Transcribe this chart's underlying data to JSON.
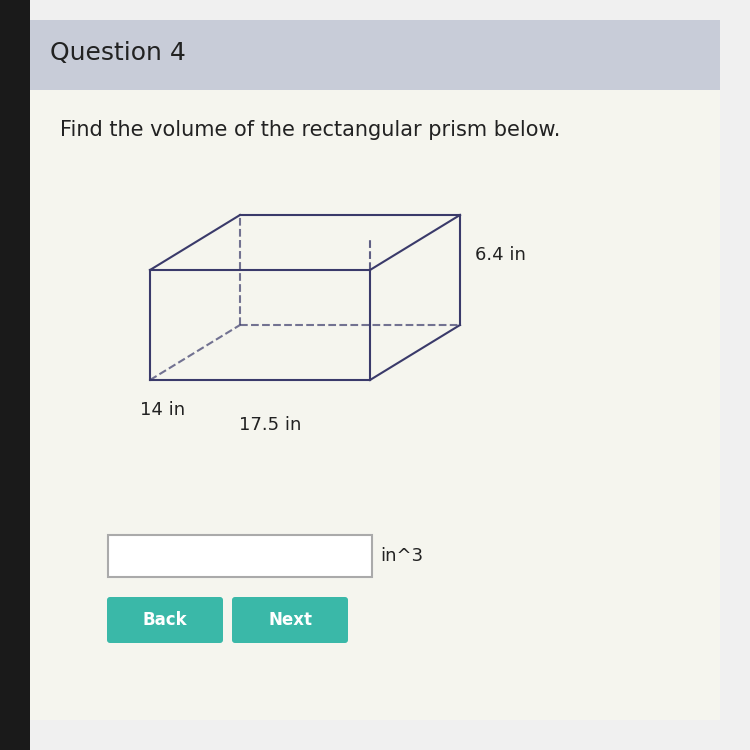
{
  "title": "Question 4",
  "question_text": "Find the volume of the rectangular prism below.",
  "dim_length": "17.5 in",
  "dim_width": "14 in",
  "dim_height": "6.4 in",
  "unit_label": "in^3",
  "bg_color": "#f0f0f0",
  "header_color": "#c8ccd8",
  "box_color": "#ffffff",
  "prism_line_color": "#3a3a6a",
  "button_color": "#3ab8a8",
  "button_text_color": "#ffffff",
  "button_back": "Back",
  "button_next": "Next",
  "title_fontsize": 18,
  "question_fontsize": 15,
  "label_fontsize": 13
}
